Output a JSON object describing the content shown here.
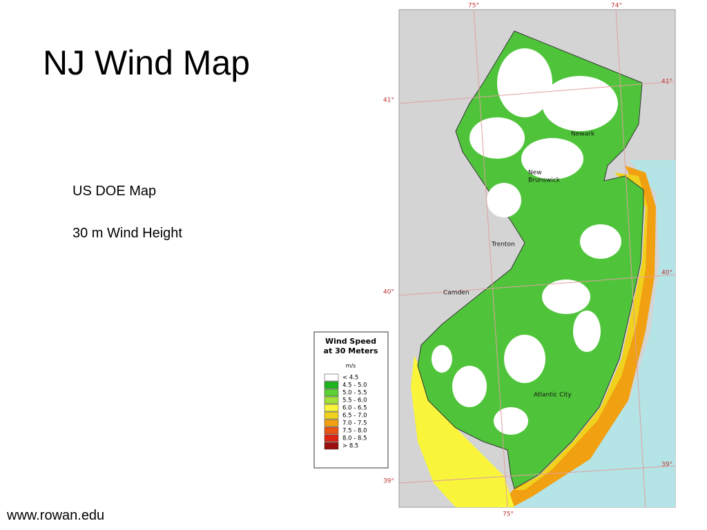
{
  "header": {
    "title": "NJ Wind Map"
  },
  "body": {
    "lines": [
      "US DOE Map",
      "30 m Wind Height"
    ]
  },
  "footer": {
    "url": "www.rowan.edu"
  },
  "map": {
    "coordinate_labels": [
      "75°",
      "74°",
      "41°",
      "41°",
      "40°",
      "40°",
      "39°",
      "39°",
      "75°"
    ],
    "places": [
      [
        "Newark"
      ],
      [
        "New",
        "Brunswick"
      ],
      [
        "Trenton"
      ],
      [
        "Camden"
      ],
      [
        "Atlantic City"
      ]
    ]
  },
  "legend": {
    "title": [
      "Wind Speed",
      "at 30 Meters"
    ],
    "unit": "m/s",
    "classes": [
      {
        "label": "< 4.5",
        "color": "#ffffff"
      },
      {
        "label": "4.5 - 5.0",
        "color": "#1fb31f"
      },
      {
        "label": "5.0 - 5.5",
        "color": "#5ccf36"
      },
      {
        "label": "5.5 - 6.0",
        "color": "#a3e03a"
      },
      {
        "label": "6.0 - 6.5",
        "color": "#f8f53a"
      },
      {
        "label": "6.5 - 7.0",
        "color": "#f0d21e"
      },
      {
        "label": "7.0 - 7.5",
        "color": "#f0a010"
      },
      {
        "label": "7.5 - 8.0",
        "color": "#e85414"
      },
      {
        "label": "8.0 - 8.5",
        "color": "#dc2414"
      },
      {
        "label": "> 8.5",
        "color": "#9a1010"
      }
    ]
  }
}
